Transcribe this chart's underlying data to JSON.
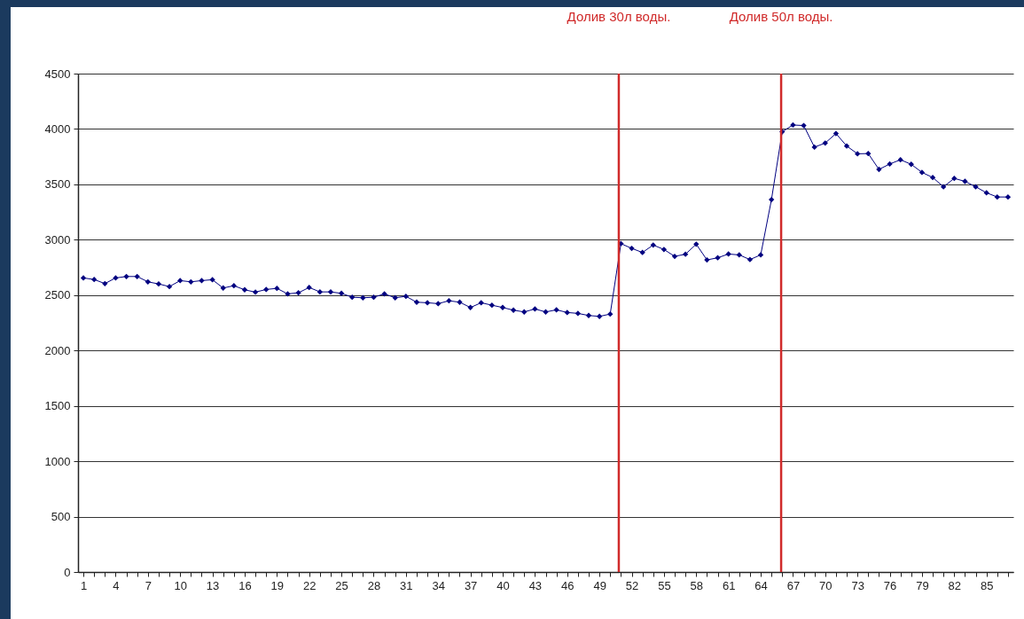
{
  "chart_data": {
    "type": "line",
    "x": [
      1,
      2,
      3,
      4,
      5,
      6,
      7,
      8,
      9,
      10,
      11,
      12,
      13,
      14,
      15,
      16,
      17,
      18,
      19,
      20,
      21,
      22,
      23,
      24,
      25,
      26,
      27,
      28,
      29,
      30,
      31,
      32,
      33,
      34,
      35,
      36,
      37,
      38,
      39,
      40,
      41,
      42,
      43,
      44,
      45,
      46,
      47,
      48,
      49,
      50,
      51,
      52,
      53,
      54,
      55,
      56,
      57,
      58,
      59,
      60,
      61,
      62,
      63,
      64,
      65,
      66,
      67,
      68,
      69,
      70,
      71,
      72,
      73,
      74,
      75,
      76,
      77,
      78,
      79,
      80,
      81,
      82,
      83,
      84,
      85,
      86,
      87
    ],
    "series": [
      {
        "color": "#000080",
        "values": [
          2655,
          2641,
          2604,
          2655,
          2668,
          2668,
          2620,
          2601,
          2577,
          2631,
          2620,
          2631,
          2639,
          2564,
          2585,
          2548,
          2527,
          2551,
          2561,
          2511,
          2521,
          2569,
          2529,
          2529,
          2516,
          2481,
          2476,
          2481,
          2511,
          2476,
          2489,
          2436,
          2431,
          2423,
          2449,
          2436,
          2388,
          2431,
          2409,
          2388,
          2364,
          2348,
          2375,
          2348,
          2367,
          2343,
          2335,
          2316,
          2308,
          2329,
          2965,
          2922,
          2885,
          2952,
          2912,
          2850,
          2869,
          2960,
          2818,
          2837,
          2871,
          2863,
          2821,
          2863,
          3362,
          3975,
          4036,
          4031,
          3836,
          3873,
          3959,
          3846,
          3776,
          3778,
          3635,
          3684,
          3722,
          3681,
          3608,
          3562,
          3478,
          3554,
          3527,
          3478,
          3424,
          3386,
          3386
        ]
      }
    ],
    "xlim": [
      0.5,
      87.5
    ],
    "xticks": [
      1,
      {
        "value": 2,
        "label": null
      },
      {
        "value": 3,
        "label": null
      },
      4,
      {
        "value": 5,
        "label": null
      },
      {
        "value": 6,
        "label": null
      },
      7,
      {
        "value": 8,
        "label": null
      },
      {
        "value": 9,
        "label": null
      },
      10,
      {
        "value": 11,
        "label": null
      },
      {
        "value": 12,
        "label": null
      },
      13,
      {
        "value": 14,
        "label": null
      },
      {
        "value": 15,
        "label": null
      },
      16,
      {
        "value": 17,
        "label": null
      },
      {
        "value": 18,
        "label": null
      },
      19,
      {
        "value": 20,
        "label": null
      },
      {
        "value": 21,
        "label": null
      },
      22,
      {
        "value": 23,
        "label": null
      },
      {
        "value": 24,
        "label": null
      },
      25,
      {
        "value": 26,
        "label": null
      },
      {
        "value": 27,
        "label": null
      },
      28,
      {
        "value": 29,
        "label": null
      },
      {
        "value": 30,
        "label": null
      },
      31,
      {
        "value": 32,
        "label": null
      },
      {
        "value": 33,
        "label": null
      },
      34,
      {
        "value": 35,
        "label": null
      },
      {
        "value": 36,
        "label": null
      },
      37,
      {
        "value": 38,
        "label": null
      },
      {
        "value": 39,
        "label": null
      },
      40,
      {
        "value": 41,
        "label": null
      },
      {
        "value": 42,
        "label": null
      },
      43,
      {
        "value": 44,
        "label": null
      },
      {
        "value": 45,
        "label": null
      },
      46,
      {
        "value": 47,
        "label": null
      },
      {
        "value": 48,
        "label": null
      },
      49,
      {
        "value": 50,
        "label": null
      },
      {
        "value": 51,
        "label": null
      },
      52,
      {
        "value": 53,
        "label": null
      },
      {
        "value": 54,
        "label": null
      },
      55,
      {
        "value": 56,
        "label": null
      },
      {
        "value": 57,
        "label": null
      },
      58,
      {
        "value": 59,
        "label": null
      },
      {
        "value": 60,
        "label": null
      },
      61,
      {
        "value": 62,
        "label": null
      },
      {
        "value": 63,
        "label": null
      },
      64,
      {
        "value": 65,
        "label": null
      },
      {
        "value": 66,
        "label": null
      },
      67,
      {
        "value": 68,
        "label": null
      },
      {
        "value": 69,
        "label": null
      },
      70,
      {
        "value": 71,
        "label": null
      },
      {
        "value": 72,
        "label": null
      },
      73,
      {
        "value": 74,
        "label": null
      },
      {
        "value": 75,
        "label": null
      },
      76,
      {
        "value": 77,
        "label": null
      },
      {
        "value": 78,
        "label": null
      },
      79,
      {
        "value": 80,
        "label": null
      },
      {
        "value": 81,
        "label": null
      },
      82,
      {
        "value": 83,
        "label": null
      },
      {
        "value": 84,
        "label": null
      },
      85,
      {
        "value": 86,
        "label": null
      },
      {
        "value": 87,
        "label": null
      }
    ],
    "ylim": [
      0,
      4500
    ],
    "yticks": [
      0,
      500,
      1000,
      1500,
      2000,
      2500,
      3000,
      3500,
      4000,
      4500
    ],
    "grid": "y",
    "marker": "diamond",
    "line_style": "solid",
    "ref_lines": [
      {
        "axis": "x",
        "value": 50.8,
        "label": "Долив 30л воды.",
        "color": "#d02a2a"
      },
      {
        "axis": "x",
        "value": 65.9,
        "label": "Долив 50л воды.",
        "color": "#d02a2a"
      }
    ]
  }
}
